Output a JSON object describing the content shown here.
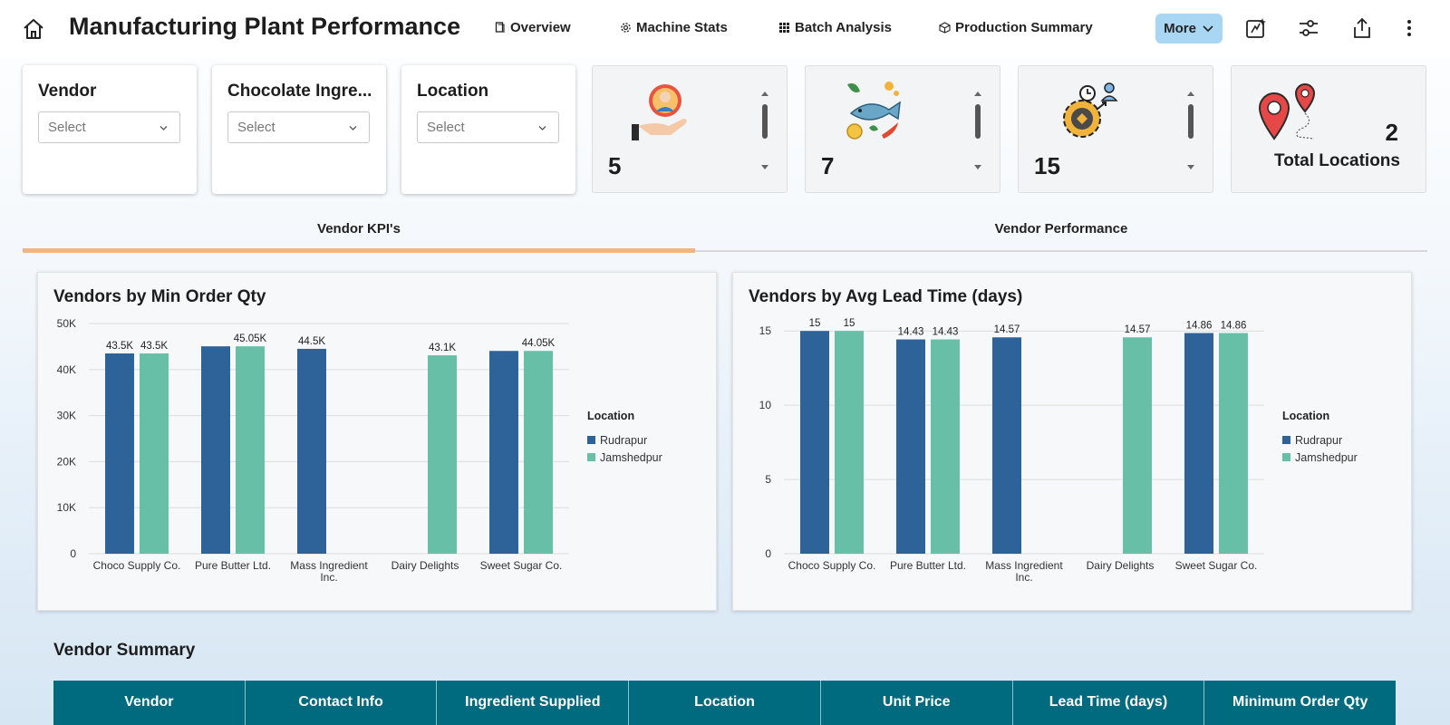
{
  "header": {
    "title": "Manufacturing Plant Performance",
    "nav": [
      {
        "label": "Overview",
        "icon": "page-icon"
      },
      {
        "label": "Machine Stats",
        "icon": "gear-icon"
      },
      {
        "label": "Batch Analysis",
        "icon": "grid-icon"
      },
      {
        "label": "Production Summary",
        "icon": "box-icon"
      }
    ],
    "more_label": "More",
    "icons": [
      "home-icon",
      "sparkle-edit-icon",
      "sliders-icon",
      "share-icon",
      "kebab-menu-icon"
    ]
  },
  "filters": [
    {
      "label": "Vendor",
      "placeholder": "Select"
    },
    {
      "label": "Chocolate Ingre...",
      "placeholder": "Select"
    },
    {
      "label": "Location",
      "placeholder": "Select"
    }
  ],
  "kpis": [
    {
      "value": "5",
      "icon": "vendor-hand-icon"
    },
    {
      "value": "7",
      "icon": "ingredients-icon"
    },
    {
      "value": "15",
      "icon": "process-gear-icon"
    }
  ],
  "locations_kpi": {
    "value": "2",
    "label": "Total Locations",
    "icon": "map-pins-icon"
  },
  "tabs": [
    {
      "label": "Vendor KPI's",
      "active": true
    },
    {
      "label": "Vendor Performance",
      "active": false
    }
  ],
  "colors": {
    "rudrapur": "#2e6399",
    "jamshedpur": "#68bfa7",
    "accent_tab": "#f0b67f",
    "table_header": "#006b7f"
  },
  "chart_data": [
    {
      "type": "bar",
      "title": "Vendors by Min Order Qty",
      "categories": [
        "Choco Supply Co.",
        "Pure Butter Ltd.",
        "Mass Ingredient Inc.",
        "Dairy Delights",
        "Sweet Sugar Co."
      ],
      "series": [
        {
          "name": "Rudrapur",
          "values": [
            43500,
            45050,
            44500,
            null,
            44050
          ],
          "labels": [
            "43.5K",
            "",
            "44.5K",
            "",
            ""
          ]
        },
        {
          "name": "Jamshedpur",
          "values": [
            43500,
            45050,
            null,
            43100,
            44050
          ],
          "labels": [
            "43.5K",
            "45.05K",
            "",
            "43.1K",
            "44.05K"
          ]
        }
      ],
      "ylim": [
        0,
        50000
      ],
      "yticks": [
        0,
        10000,
        20000,
        30000,
        40000,
        50000
      ],
      "ytick_labels": [
        "0",
        "10K",
        "20K",
        "30K",
        "40K",
        "50K"
      ],
      "legend_title": "Location",
      "legend_position": "right",
      "grid": true
    },
    {
      "type": "bar",
      "title": "Vendors by Avg Lead Time (days)",
      "categories": [
        "Choco Supply Co.",
        "Pure Butter Ltd.",
        "Mass Ingredient Inc.",
        "Dairy Delights",
        "Sweet Sugar Co."
      ],
      "series": [
        {
          "name": "Rudrapur",
          "values": [
            15,
            14.43,
            14.57,
            null,
            14.86
          ],
          "labels": [
            "15",
            "14.43",
            "14.57",
            "",
            "14.86"
          ]
        },
        {
          "name": "Jamshedpur",
          "values": [
            15,
            14.43,
            null,
            14.57,
            14.86
          ],
          "labels": [
            "15",
            "14.43",
            "",
            "14.57",
            "14.86"
          ]
        }
      ],
      "ylim": [
        0,
        15.5
      ],
      "yticks": [
        0,
        5,
        10,
        15
      ],
      "ytick_labels": [
        "0",
        "5",
        "10",
        "15"
      ],
      "legend_title": "Location",
      "legend_position": "right",
      "grid": true
    }
  ],
  "summary": {
    "title": "Vendor Summary",
    "columns": [
      "Vendor",
      "Contact Info",
      "Ingredient Supplied",
      "Location",
      "Unit Price",
      "Lead Time (days)",
      "Minimum Order Qty"
    ]
  }
}
